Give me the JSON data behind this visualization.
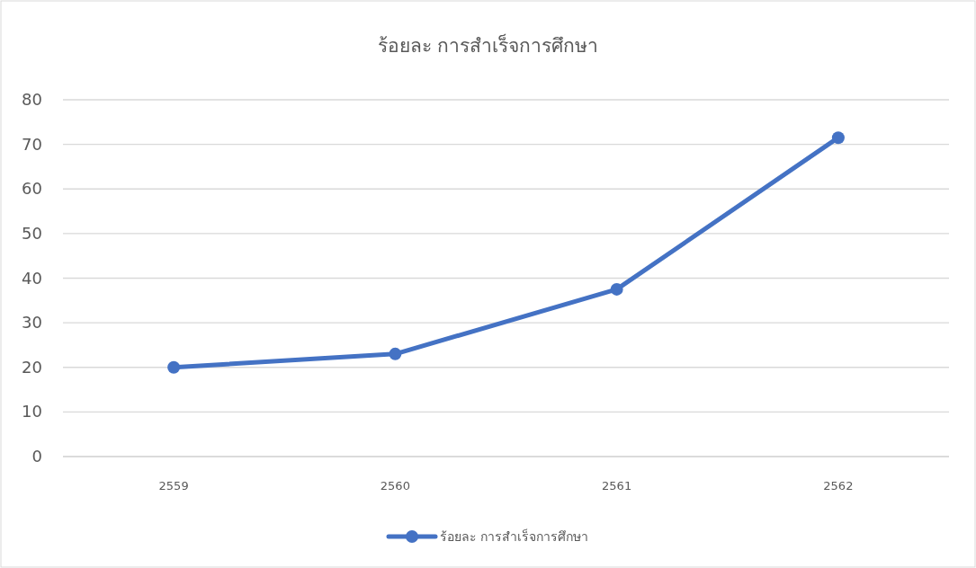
{
  "chart_data": {
    "type": "line",
    "title": "ร้อยละ การสำเร็จการศึกษา",
    "categories": [
      "2559",
      "2560",
      "2561",
      "2562"
    ],
    "series": [
      {
        "name": "ร้อยละ การสำเร็จการศึกษา",
        "color": "#4472c4",
        "values": [
          20,
          23,
          37.5,
          71.5
        ]
      }
    ],
    "ylim": [
      0,
      80
    ],
    "yticks": [
      0,
      10,
      20,
      30,
      40,
      50,
      60,
      70,
      80
    ],
    "grid": "y",
    "legend": "bottom",
    "marker": "circle",
    "line_style": "solid"
  }
}
